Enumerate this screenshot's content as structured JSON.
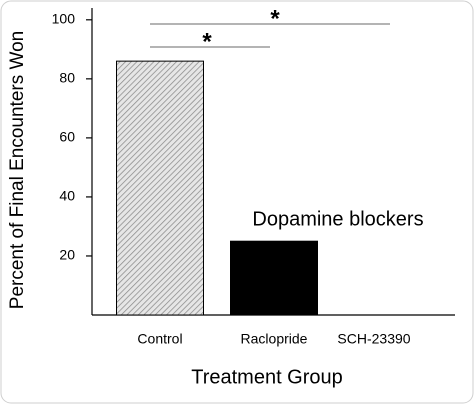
{
  "chart_data": {
    "type": "bar",
    "y_label": "Percent of Final Encounters Won",
    "x_label": "Treatment Group",
    "categories": [
      "Control",
      "Raclopride",
      "SCH-23390"
    ],
    "values": [
      86,
      25,
      0
    ],
    "colors": [
      "#b0b0b0",
      "#000000",
      "#000000"
    ],
    "bar_styles": [
      "hatched",
      "solid",
      "solid"
    ],
    "ylim": [
      0,
      104
    ],
    "yticks": [
      20,
      40,
      60,
      80,
      100
    ],
    "annotations": [
      "*",
      "*",
      "Dopamine blockers"
    ]
  }
}
